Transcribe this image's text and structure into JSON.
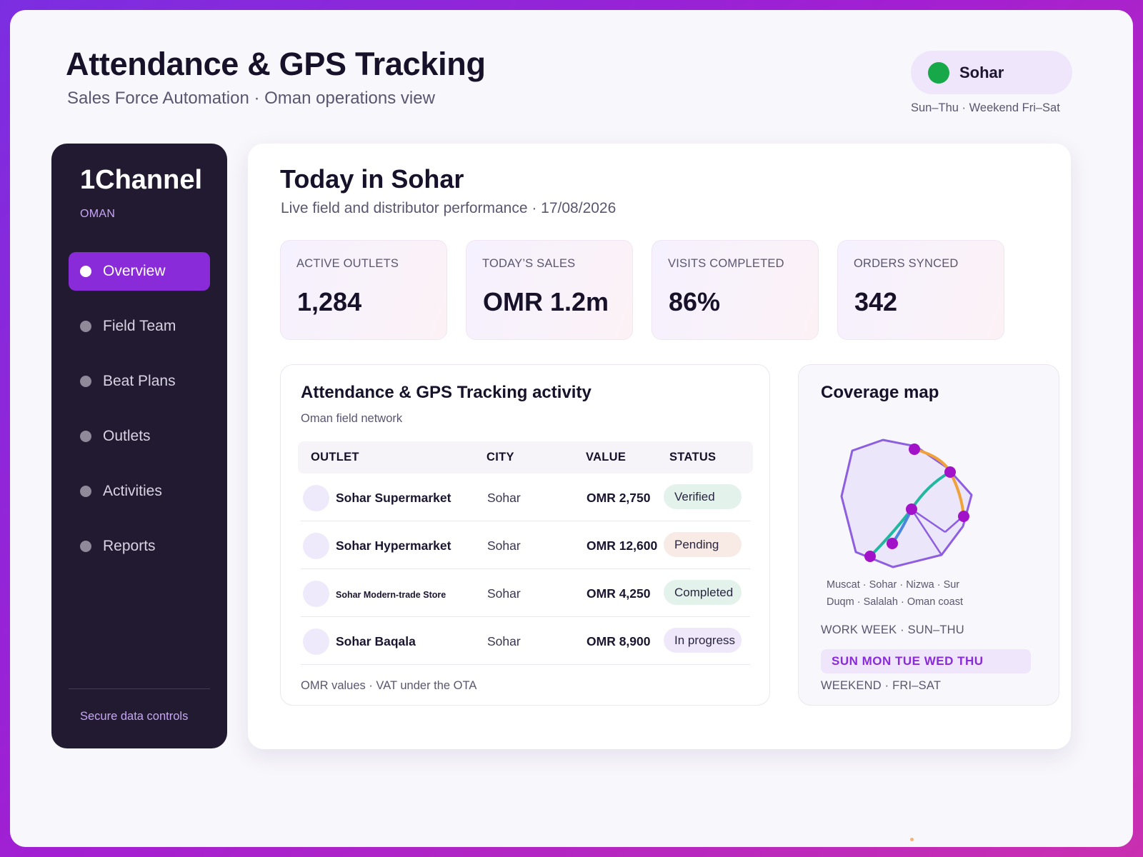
{
  "header": {
    "title": "Attendance & GPS Tracking",
    "subtitle": "Sales Force Automation · Oman operations view",
    "location": "Sohar",
    "location_status_color": "#17a84a",
    "week_note": "Sun–Thu · Weekend Fri–Sat"
  },
  "sidebar": {
    "brand": "1Channel",
    "region": "OMAN",
    "items": [
      {
        "label": "Overview",
        "active": true
      },
      {
        "label": "Field Team",
        "active": false
      },
      {
        "label": "Beat Plans",
        "active": false
      },
      {
        "label": "Outlets",
        "active": false
      },
      {
        "label": "Activities",
        "active": false
      },
      {
        "label": "Reports",
        "active": false
      }
    ],
    "footer": "Secure data controls"
  },
  "main": {
    "title": "Today in Sohar",
    "subtitle": "Live field and distributor performance · 17/08/2026",
    "kpis": [
      {
        "label": "ACTIVE OUTLETS",
        "value": "1,284"
      },
      {
        "label": "TODAY’S SALES",
        "value": "OMR 1.2m"
      },
      {
        "label": "VISITS COMPLETED",
        "value": "86%"
      },
      {
        "label": "ORDERS SYNCED",
        "value": "342"
      }
    ]
  },
  "activity": {
    "title": "Attendance & GPS Tracking activity",
    "subtitle": "Oman field network",
    "columns": [
      "OUTLET",
      "CITY",
      "VALUE",
      "STATUS"
    ],
    "rows": [
      {
        "outlet": "Sohar Supermarket",
        "city": "Sohar",
        "value": "OMR 2,750",
        "status": "Verified"
      },
      {
        "outlet": "Sohar Hypermarket",
        "city": "Sohar",
        "value": "OMR 12,600",
        "status": "Pending"
      },
      {
        "outlet": "Sohar Modern-trade Store",
        "city": "Sohar",
        "value": "OMR 4,250",
        "status": "Completed"
      },
      {
        "outlet": "Sohar Baqala",
        "city": "Sohar",
        "value": "OMR 8,900",
        "status": "In progress"
      }
    ],
    "status_colors": {
      "Verified": "#e3f3ec",
      "Pending": "#f8ebe5",
      "Completed": "#e3f3ec",
      "In progress": "#efe8fa"
    },
    "footer": "OMR values · VAT under the OTA"
  },
  "coverage": {
    "title": "Coverage map",
    "caption_line1": "Muscat · Sohar · Nizwa · Sur",
    "caption_line2": "Duqm · Salalah · Oman coast",
    "work_week": "WORK WEEK · SUN–THU",
    "days": "SUN MON TUE WED THU",
    "weekend": "WEEKEND · FRI–SAT",
    "colors": {
      "outline": "#8d5ee0",
      "fill": "#ece6fa",
      "pin": "#a212c9",
      "route_teal": "#22b8a0",
      "route_orange": "#f0a23a",
      "route_blue": "#4a86e0"
    }
  }
}
